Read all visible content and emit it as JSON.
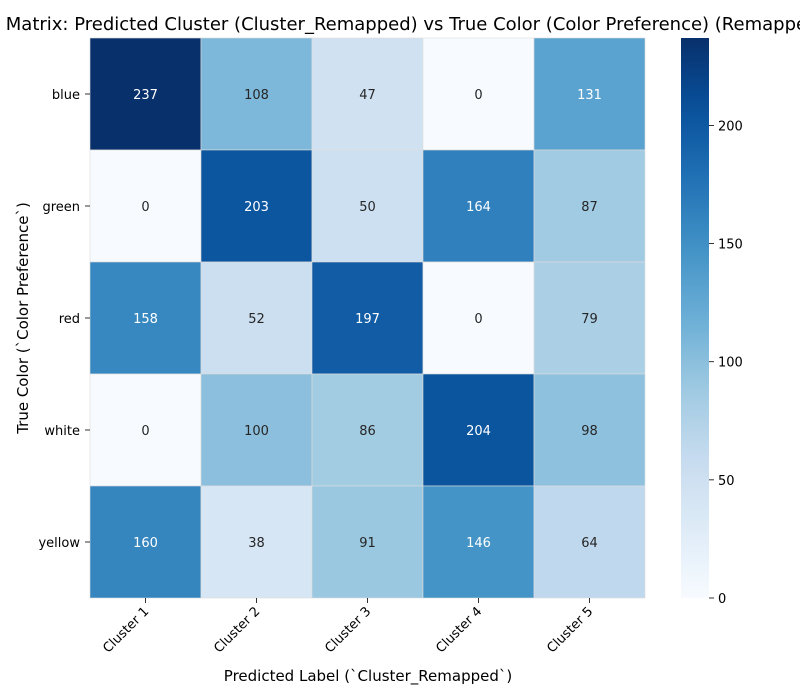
{
  "chart_data": {
    "type": "heatmap",
    "title": "Confusion Matrix: Predicted Cluster (Cluster_Remapped) vs True Color (Color Preference) (Remapped)",
    "xlabel": "Predicted Label (`Cluster_Remapped`)",
    "ylabel": "True Color (`Color Preference`)",
    "x_categories": [
      "Cluster 1",
      "Cluster 2",
      "Cluster 3",
      "Cluster 4",
      "Cluster 5"
    ],
    "y_categories": [
      "blue",
      "green",
      "red",
      "white",
      "yellow"
    ],
    "values": [
      [
        237,
        108,
        47,
        0,
        131
      ],
      [
        0,
        203,
        50,
        164,
        87
      ],
      [
        158,
        52,
        197,
        0,
        79
      ],
      [
        0,
        100,
        86,
        204,
        98
      ],
      [
        160,
        38,
        91,
        146,
        64
      ]
    ],
    "colormap": "Blues",
    "colorbar": {
      "min": 0,
      "max": 237,
      "ticks": [
        0,
        50,
        100,
        150,
        200
      ]
    },
    "grid": false,
    "annotations": true
  }
}
